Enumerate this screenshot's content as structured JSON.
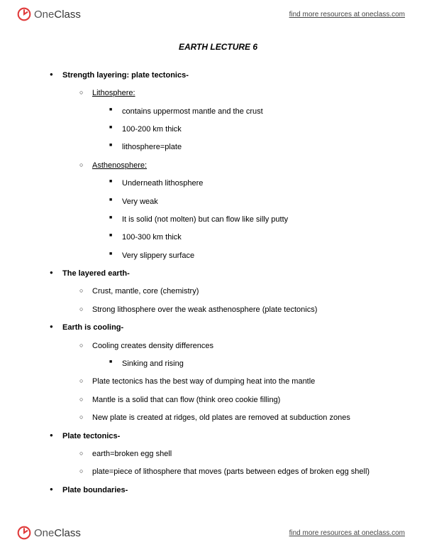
{
  "brand": {
    "logo_text_one": "One",
    "logo_text_class": "Class",
    "resources_link": "find more resources at oneclass.com"
  },
  "title": "EARTH LECTURE 6",
  "sections": [
    {
      "heading": "Strength layering: plate tectonics-",
      "items": [
        {
          "label": "Lithosphere:",
          "underline": true,
          "subitems": [
            "contains uppermost mantle and the crust",
            "100-200 km thick",
            "lithosphere=plate"
          ]
        },
        {
          "label": "Asthenosphere:",
          "underline": true,
          "subitems": [
            "Underneath lithosphere",
            "Very weak",
            "It is solid (not molten) but can flow like silly putty",
            "100-300 km thick",
            "Very slippery surface"
          ]
        }
      ]
    },
    {
      "heading": "The layered earth-",
      "items": [
        {
          "label": "Crust, mantle, core (chemistry)"
        },
        {
          "label": "Strong lithosphere over the weak asthenosphere (plate tectonics)"
        }
      ]
    },
    {
      "heading": "Earth is cooling-",
      "items": [
        {
          "label": "Cooling creates density differences",
          "subitems": [
            "Sinking and rising"
          ]
        },
        {
          "label": "Plate tectonics has the best way of dumping heat into the mantle"
        },
        {
          "label": "Mantle is a solid that can flow (think oreo cookie filling)"
        },
        {
          "label": "New plate is created at ridges, old plates are removed at subduction zones"
        }
      ]
    },
    {
      "heading": "Plate tectonics-",
      "items": [
        {
          "label": "earth=broken egg shell"
        },
        {
          "label": "plate=piece of lithosphere that moves (parts between edges of broken egg shell)"
        }
      ]
    },
    {
      "heading": "Plate boundaries-",
      "items": []
    }
  ]
}
